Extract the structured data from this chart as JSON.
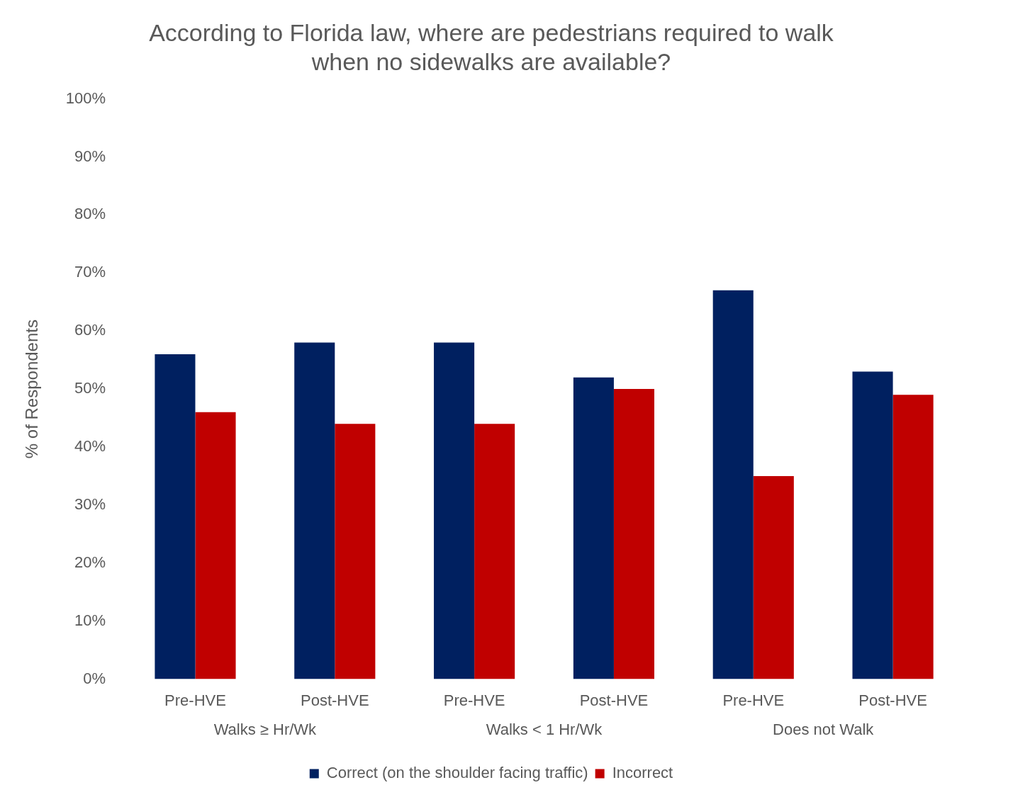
{
  "chart_data": {
    "type": "bar",
    "title": "According to Florida law, where are pedestrians required to walk\nwhen no sidewalks are available?",
    "ylabel": "% of Respondents",
    "categories": [
      "Pre-HVE",
      "Post-HVE",
      "Pre-HVE",
      "Post-HVE",
      "Pre-HVE",
      "Post-HVE"
    ],
    "annotations": [
      "Walks ≥ Hr/Wk",
      "Walks < 1 Hr/Wk",
      "Does not Walk"
    ],
    "series": [
      {
        "name": "Correct (on the shoulder facing traffic)",
        "color": "#002060",
        "values": [
          56,
          58,
          58,
          52,
          67,
          53
        ]
      },
      {
        "name": "Incorrect",
        "color": "#c00000",
        "values": [
          46,
          44,
          44,
          50,
          35,
          49
        ]
      }
    ],
    "ylim": [
      0,
      100
    ],
    "yticks": [
      {
        "value": 0,
        "label": "0%"
      },
      {
        "value": 10,
        "label": "10%"
      },
      {
        "value": 20,
        "label": "20%"
      },
      {
        "value": 30,
        "label": "30%"
      },
      {
        "value": 40,
        "label": "40%"
      },
      {
        "value": 50,
        "label": "50%"
      },
      {
        "value": 60,
        "label": "60%"
      },
      {
        "value": 70,
        "label": "70%"
      },
      {
        "value": 80,
        "label": "80%"
      },
      {
        "value": 90,
        "label": "90%"
      },
      {
        "value": 100,
        "label": "100%"
      }
    ],
    "grid": false,
    "legend": "bottom"
  }
}
